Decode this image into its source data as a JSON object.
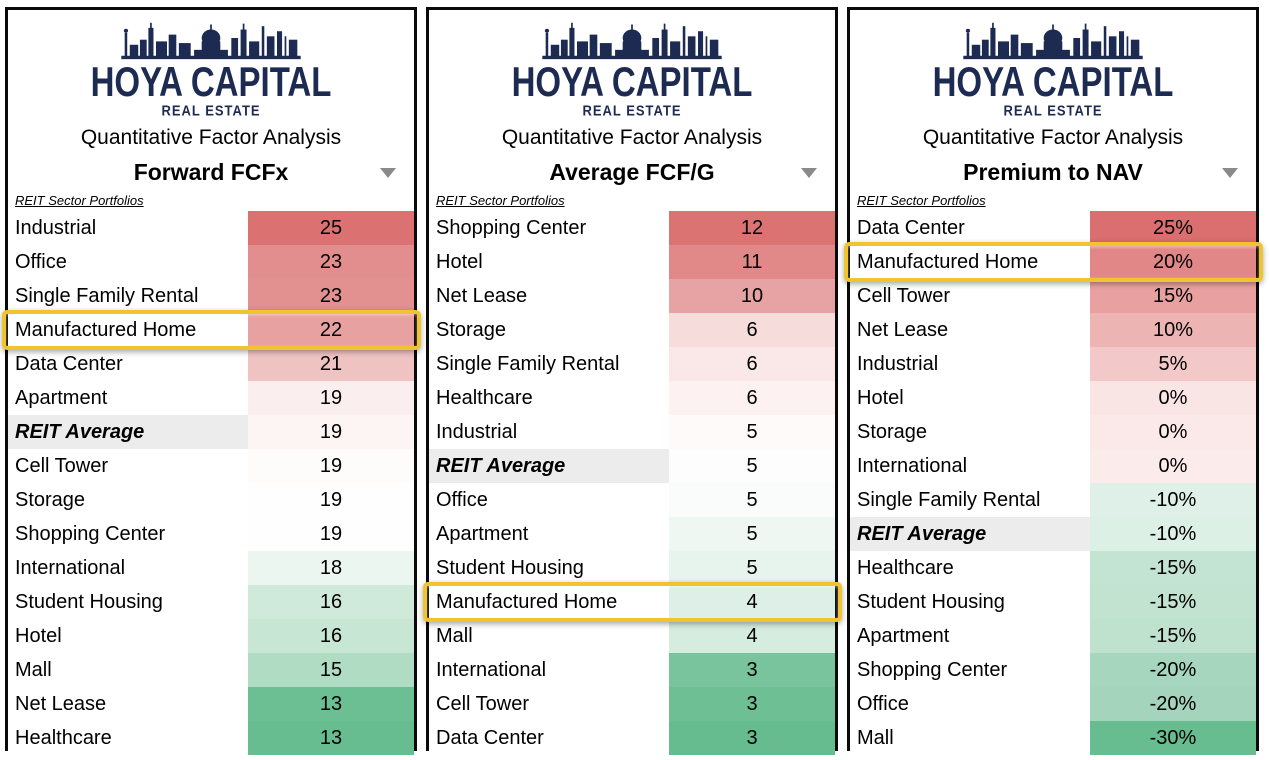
{
  "brand": {
    "logo_line1": "HOYA CAPITAL",
    "logo_line2": "REAL ESTATE",
    "logo_color": "#1d2b52"
  },
  "header": {
    "subtitle": "Quantitative Factor Analysis",
    "list_label": "REIT Sector Portfolios"
  },
  "colors": {
    "highlight_border": "#f0c330",
    "average_row_bg": "#ececec",
    "panel_border": "#0a0a0a",
    "dropdown_arrow": "#8a8a8a",
    "scale_max_red": "#dc7171",
    "scale_min_green": "#66bc8e"
  },
  "chart_data": {
    "type": "heatmap-table",
    "title": "Quantitative Factor Analysis",
    "legend": "red = high value, green = low value; Manufactured Home highlighted in each panel",
    "panels": [
      {
        "factor": "Forward FCFx",
        "highlighted_sector": "Manufactured Home",
        "rows": [
          {
            "sector": "Industrial",
            "value": "25",
            "bg": "#dc7171"
          },
          {
            "sector": "Office",
            "value": "23",
            "bg": "#e28e8e"
          },
          {
            "sector": "Single Family Rental",
            "value": "23",
            "bg": "#e29090"
          },
          {
            "sector": "Manufactured Home",
            "value": "22",
            "bg": "#e7a1a1",
            "highlighted": true
          },
          {
            "sector": "Data Center",
            "value": "21",
            "bg": "#f0c3c3"
          },
          {
            "sector": "Apartment",
            "value": "19",
            "bg": "#fbeeee"
          },
          {
            "sector": "REIT Average",
            "value": "19",
            "bg": "#fdf4f4",
            "average": true
          },
          {
            "sector": "Cell Tower",
            "value": "19",
            "bg": "#fefbfb"
          },
          {
            "sector": "Storage",
            "value": "19",
            "bg": "#fffefe"
          },
          {
            "sector": "Shopping Center",
            "value": "19",
            "bg": "#fdfefd"
          },
          {
            "sector": "International",
            "value": "18",
            "bg": "#ecf6f0"
          },
          {
            "sector": "Student Housing",
            "value": "16",
            "bg": "#cfe9da"
          },
          {
            "sector": "Hotel",
            "value": "16",
            "bg": "#c8e6d4"
          },
          {
            "sector": "Mall",
            "value": "15",
            "bg": "#afdcc3"
          },
          {
            "sector": "Net Lease",
            "value": "13",
            "bg": "#6cbf92"
          },
          {
            "sector": "Healthcare",
            "value": "13",
            "bg": "#67bd8f"
          }
        ]
      },
      {
        "factor": "Average FCF/G",
        "highlighted_sector": "Manufactured Home",
        "rows": [
          {
            "sector": "Shopping Center",
            "value": "12",
            "bg": "#dc7373"
          },
          {
            "sector": "Hotel",
            "value": "11",
            "bg": "#e18989"
          },
          {
            "sector": "Net Lease",
            "value": "10",
            "bg": "#e7a3a3"
          },
          {
            "sector": "Storage",
            "value": "6",
            "bg": "#f7dcdc"
          },
          {
            "sector": "Single Family Rental",
            "value": "6",
            "bg": "#fae8e8"
          },
          {
            "sector": "Healthcare",
            "value": "6",
            "bg": "#fdf1f1"
          },
          {
            "sector": "Industrial",
            "value": "5",
            "bg": "#fefafa"
          },
          {
            "sector": "REIT Average",
            "value": "5",
            "bg": "#fefdfd",
            "average": true
          },
          {
            "sector": "Office",
            "value": "5",
            "bg": "#f9fcfa"
          },
          {
            "sector": "Apartment",
            "value": "5",
            "bg": "#eff7f3"
          },
          {
            "sector": "Student Housing",
            "value": "5",
            "bg": "#e7f4ed"
          },
          {
            "sector": "Manufactured Home",
            "value": "4",
            "bg": "#ddefe6",
            "highlighted": true
          },
          {
            "sector": "Mall",
            "value": "4",
            "bg": "#d5ecdf"
          },
          {
            "sector": "International",
            "value": "3",
            "bg": "#79c49c"
          },
          {
            "sector": "Cell Tower",
            "value": "3",
            "bg": "#6ec094"
          },
          {
            "sector": "Data Center",
            "value": "3",
            "bg": "#66bc8e"
          }
        ]
      },
      {
        "factor": "Premium to NAV",
        "highlighted_sector": "Manufactured Home",
        "rows": [
          {
            "sector": "Data Center",
            "value": "25%",
            "bg": "#db6f6f"
          },
          {
            "sector": "Manufactured Home",
            "value": "20%",
            "bg": "#e18787",
            "highlighted": true
          },
          {
            "sector": "Cell Tower",
            "value": "15%",
            "bg": "#e8a0a0"
          },
          {
            "sector": "Net Lease",
            "value": "10%",
            "bg": "#edb4b4"
          },
          {
            "sector": "Industrial",
            "value": "5%",
            "bg": "#f2c8c8"
          },
          {
            "sector": "Hotel",
            "value": "0%",
            "bg": "#fae5e5"
          },
          {
            "sector": "Storage",
            "value": "0%",
            "bg": "#fbe9e9"
          },
          {
            "sector": "International",
            "value": "0%",
            "bg": "#fcebeb"
          },
          {
            "sector": "Single Family Rental",
            "value": "-10%",
            "bg": "#def0e7"
          },
          {
            "sector": "REIT Average",
            "value": "-10%",
            "bg": "#ddf0e6",
            "average": true
          },
          {
            "sector": "Healthcare",
            "value": "-15%",
            "bg": "#c3e4d2"
          },
          {
            "sector": "Student Housing",
            "value": "-15%",
            "bg": "#c1e3d0"
          },
          {
            "sector": "Apartment",
            "value": "-15%",
            "bg": "#bfe2cf"
          },
          {
            "sector": "Shopping Center",
            "value": "-20%",
            "bg": "#a6d6bd"
          },
          {
            "sector": "Office",
            "value": "-20%",
            "bg": "#a4d5bc"
          },
          {
            "sector": "Mall",
            "value": "-30%",
            "bg": "#68bd90"
          }
        ]
      }
    ]
  }
}
